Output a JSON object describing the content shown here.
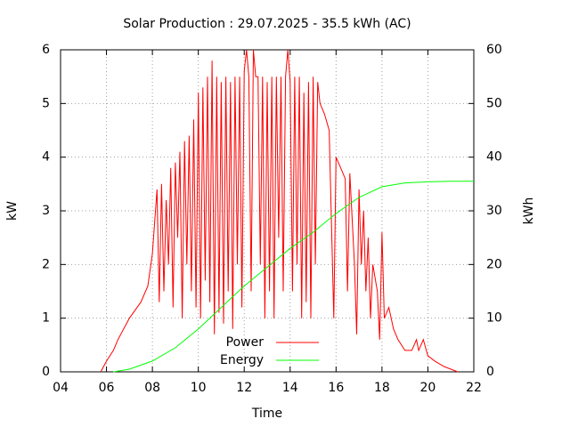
{
  "chart_data": {
    "type": "line",
    "title": "Solar Production : 29.07.2025 - 35.5 kWh (AC)",
    "xlabel": "Time",
    "ylabel": "kW",
    "y2label": "kWh",
    "xlim": [
      4,
      22
    ],
    "xticks": [
      {
        "value": 4,
        "label": "04"
      },
      {
        "value": 6,
        "label": "06"
      },
      {
        "value": 8,
        "label": "08"
      },
      {
        "value": 10,
        "label": "10"
      },
      {
        "value": 12,
        "label": "12"
      },
      {
        "value": 14,
        "label": "14"
      },
      {
        "value": 16,
        "label": "16"
      },
      {
        "value": 18,
        "label": "18"
      },
      {
        "value": 20,
        "label": "20"
      },
      {
        "value": 22,
        "label": "22"
      }
    ],
    "ylim": [
      0,
      6
    ],
    "yticks": [
      0,
      1,
      2,
      3,
      4,
      5,
      6
    ],
    "y2lim": [
      0,
      60
    ],
    "y2ticks": [
      0,
      10,
      20,
      30,
      40,
      50,
      60
    ],
    "grid": true,
    "legend": "lower right",
    "series": [
      {
        "name": "Power",
        "color": "#ff0000",
        "axis": "y",
        "x": [
          5.75,
          6.0,
          6.3,
          6.5,
          7.0,
          7.5,
          7.8,
          8.0,
          8.2,
          8.3,
          8.4,
          8.5,
          8.6,
          8.7,
          8.8,
          8.9,
          9.0,
          9.1,
          9.2,
          9.3,
          9.4,
          9.5,
          9.6,
          9.7,
          9.8,
          9.9,
          10.0,
          10.1,
          10.2,
          10.3,
          10.4,
          10.5,
          10.6,
          10.7,
          10.8,
          10.9,
          11.0,
          11.1,
          11.2,
          11.3,
          11.4,
          11.5,
          11.6,
          11.7,
          11.8,
          11.9,
          12.0,
          12.1,
          12.2,
          12.3,
          12.4,
          12.5,
          12.6,
          12.7,
          12.8,
          12.9,
          13.0,
          13.1,
          13.2,
          13.3,
          13.4,
          13.5,
          13.6,
          13.7,
          13.8,
          13.9,
          14.0,
          14.1,
          14.2,
          14.3,
          14.4,
          14.5,
          14.6,
          14.7,
          14.8,
          14.9,
          15.0,
          15.1,
          15.2,
          15.3,
          15.5,
          15.7,
          15.9,
          16.0,
          16.2,
          16.4,
          16.5,
          16.6,
          16.8,
          16.9,
          17.0,
          17.1,
          17.2,
          17.3,
          17.4,
          17.5,
          17.6,
          17.8,
          17.9,
          18.0,
          18.1,
          18.3,
          18.5,
          18.7,
          19.0,
          19.3,
          19.5,
          19.6,
          19.8,
          20.0,
          20.3,
          20.7,
          21.0,
          21.3
        ],
        "values": [
          0,
          0.2,
          0.4,
          0.6,
          1.0,
          1.3,
          1.6,
          2.2,
          3.4,
          1.3,
          3.5,
          1.5,
          3.2,
          2.0,
          3.8,
          1.2,
          3.9,
          2.5,
          4.1,
          1.0,
          4.3,
          2.0,
          4.4,
          1.5,
          4.7,
          1.2,
          5.2,
          1.0,
          5.3,
          1.7,
          5.5,
          1.3,
          5.8,
          0.7,
          5.5,
          1.1,
          5.4,
          0.9,
          5.5,
          1.5,
          5.4,
          0.8,
          5.5,
          2.0,
          5.5,
          1.2,
          5.6,
          6.0,
          5.5,
          1.5,
          6.0,
          5.5,
          5.5,
          2.0,
          5.5,
          1.0,
          5.4,
          1.5,
          5.5,
          1.0,
          5.5,
          2.5,
          5.5,
          1.5,
          5.5,
          6.0,
          5.4,
          1.5,
          5.5,
          2.0,
          5.5,
          1.0,
          5.2,
          1.3,
          5.4,
          1.0,
          5.5,
          2.0,
          5.4,
          5.0,
          4.8,
          4.5,
          1.0,
          4.0,
          3.8,
          3.6,
          1.5,
          3.7,
          2.0,
          0.7,
          3.4,
          2.0,
          3.0,
          1.5,
          2.5,
          1.0,
          2.0,
          1.5,
          0.6,
          2.6,
          1.0,
          1.2,
          0.8,
          0.6,
          0.4,
          0.4,
          0.6,
          0.4,
          0.6,
          0.3,
          0.2,
          0.1,
          0.05,
          0
        ]
      },
      {
        "name": "Energy",
        "color": "#00ff00",
        "axis": "y2",
        "x": [
          6.3,
          7,
          8,
          9,
          10,
          11,
          12,
          13,
          14,
          15,
          16,
          17,
          18,
          19,
          20,
          21,
          22
        ],
        "values": [
          0,
          0.5,
          2,
          4.5,
          8,
          12,
          16,
          19.5,
          23,
          26,
          29.5,
          32.5,
          34.5,
          35.2,
          35.4,
          35.5,
          35.5
        ]
      }
    ]
  }
}
